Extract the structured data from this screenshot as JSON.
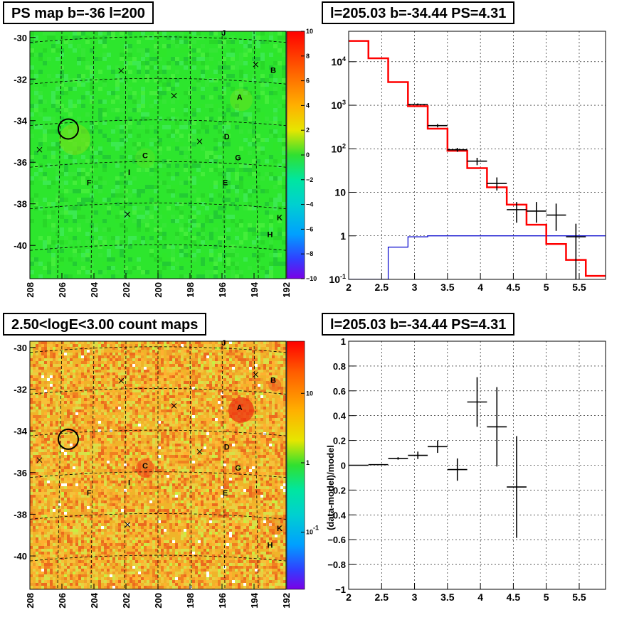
{
  "panels": {
    "map_top_title": "PS map b=-36 l=200",
    "spec_top_title": "l=205.03 b=-34.44 PS=4.31",
    "map_bottom_title": "2.50<logE<3.00 count maps",
    "spec_bottom_title": "l=205.03 b=-34.44 PS=4.31"
  },
  "colors": {
    "map_top_bg": "#2de62d",
    "map_bottom_bg": "#f0b429",
    "data": "#000000",
    "model": "#ff0000",
    "background_model": "#0000cc"
  },
  "chart_data": [
    {
      "type": "heatmap",
      "title": "PS map b=-36 l=200",
      "xlim": [
        208,
        192
      ],
      "ylim": [
        -41.6,
        -29.7
      ],
      "x_ticks": [
        "208",
        "206",
        "204",
        "202",
        "200",
        "198",
        "196",
        "194",
        "192"
      ],
      "y_ticks": [
        "-30",
        "-32",
        "-34",
        "-36",
        "-38",
        "-40"
      ],
      "colorbar_ticks": [
        "10",
        "8",
        "6",
        "4",
        "2",
        "0",
        "−2",
        "−4",
        "−6",
        "−8",
        "−10"
      ],
      "colorbar_range": [
        -10,
        10
      ],
      "labels": [
        {
          "text": "J",
          "l": 195.9,
          "b": -29.9
        },
        {
          "text": "B",
          "l": 192.8,
          "b": -31.7
        },
        {
          "text": "A",
          "l": 194.9,
          "b": -33.0
        },
        {
          "text": "D",
          "l": 195.7,
          "b": -34.9
        },
        {
          "text": "G",
          "l": 195.0,
          "b": -35.9
        },
        {
          "text": "C",
          "l": 200.8,
          "b": -35.8
        },
        {
          "text": "I",
          "l": 201.8,
          "b": -36.6
        },
        {
          "text": "F",
          "l": 204.3,
          "b": -37.1
        },
        {
          "text": "E",
          "l": 195.8,
          "b": -37.1
        },
        {
          "text": "K",
          "l": 192.4,
          "b": -38.8
        },
        {
          "text": "H",
          "l": 193.0,
          "b": -39.6
        }
      ],
      "crosses": [
        [
          207.4,
          -35.4
        ],
        [
          202.3,
          -31.6
        ],
        [
          193.9,
          -31.3
        ],
        [
          199.0,
          -32.8
        ],
        [
          197.4,
          -35.0
        ],
        [
          201.9,
          -38.5
        ]
      ],
      "circle": {
        "l": 205.6,
        "b": -34.4
      }
    },
    {
      "type": "line",
      "title": "l=205.03 b=-34.44 PS=4.31",
      "x_scale": "linear",
      "y_scale": "log",
      "xlim": [
        2.0,
        5.9
      ],
      "ylim": [
        0.1,
        50000
      ],
      "x_ticks": [
        "2",
        "2.5",
        "3",
        "3.5",
        "4",
        "4.5",
        "5",
        "5.5"
      ],
      "y_ticks": [
        "10<sup>-1</sup>",
        "1",
        "10",
        "10<sup>2</sup>",
        "10<sup>3</sup>",
        "10<sup>4</sup>"
      ],
      "bin_edges": [
        2.0,
        2.3,
        2.6,
        2.9,
        3.2,
        3.5,
        3.8,
        4.1,
        4.4,
        4.7,
        5.0,
        5.3,
        5.6,
        5.9
      ],
      "series": [
        {
          "name": "model",
          "values": [
            30000,
            12000,
            3400,
            950,
            290,
            90,
            36,
            13,
            5.2,
            1.8,
            0.65,
            0.28,
            0.12
          ]
        },
        {
          "name": "background",
          "values": [
            0.1,
            0.1,
            0.55,
            0.95,
            1.0,
            1.0,
            1.0,
            1.0,
            1.0,
            1.0,
            1.0,
            1.0,
            1.0
          ]
        }
      ],
      "data_points": [
        {
          "x": 3.05,
          "y": 1050,
          "lo": 1000,
          "hi": 1100
        },
        {
          "x": 3.35,
          "y": 340,
          "lo": 310,
          "hi": 370
        },
        {
          "x": 3.65,
          "y": 95,
          "lo": 85,
          "hi": 105
        },
        {
          "x": 3.95,
          "y": 52,
          "lo": 42,
          "hi": 62
        },
        {
          "x": 4.25,
          "y": 16,
          "lo": 11,
          "hi": 22
        },
        {
          "x": 4.55,
          "y": 4.0,
          "lo": 2.0,
          "hi": 6.0
        },
        {
          "x": 4.85,
          "y": 3.7,
          "lo": 2.0,
          "hi": 6.0
        },
        {
          "x": 5.15,
          "y": 3.0,
          "lo": 1.3,
          "hi": 5.5
        },
        {
          "x": 5.45,
          "y": 0.95,
          "lo": 0.1,
          "hi": 1.9
        }
      ]
    },
    {
      "type": "heatmap",
      "title": "2.50<logE<3.00 count maps",
      "xlim": [
        208,
        192
      ],
      "ylim": [
        -41.6,
        -29.7
      ],
      "x_ticks": [
        "208",
        "206",
        "204",
        "202",
        "200",
        "198",
        "196",
        "194",
        "192"
      ],
      "y_ticks": [
        "-30",
        "-32",
        "-34",
        "-36",
        "-38",
        "-40"
      ],
      "colorbar_ticks": [
        "10",
        "1",
        "10<sup>-1</sup>"
      ],
      "colorbar_range_log10": [
        -1.3,
        1.25
      ],
      "labels": [
        {
          "text": "J",
          "l": 195.9,
          "b": -29.9
        },
        {
          "text": "B",
          "l": 192.8,
          "b": -31.7
        },
        {
          "text": "A",
          "l": 194.9,
          "b": -33.0
        },
        {
          "text": "D",
          "l": 195.7,
          "b": -34.9
        },
        {
          "text": "G",
          "l": 195.0,
          "b": -35.9
        },
        {
          "text": "C",
          "l": 200.8,
          "b": -35.8
        },
        {
          "text": "I",
          "l": 201.8,
          "b": -36.6
        },
        {
          "text": "F",
          "l": 204.3,
          "b": -37.1
        },
        {
          "text": "E",
          "l": 195.8,
          "b": -37.1
        },
        {
          "text": "K",
          "l": 192.4,
          "b": -38.8
        },
        {
          "text": "H",
          "l": 193.0,
          "b": -39.6
        }
      ],
      "crosses": [
        [
          207.4,
          -35.4
        ],
        [
          202.3,
          -31.6
        ],
        [
          193.9,
          -31.3
        ],
        [
          199.0,
          -32.8
        ],
        [
          197.4,
          -35.0
        ],
        [
          201.9,
          -38.5
        ]
      ],
      "circle": {
        "l": 205.6,
        "b": -34.4
      }
    },
    {
      "type": "scatter",
      "title": "l=205.03 b=-34.44 PS=4.31",
      "ylabel": "(data-model)/model",
      "xlim": [
        2.0,
        5.9
      ],
      "ylim": [
        -1.0,
        1.0
      ],
      "x_ticks": [
        "2",
        "2.5",
        "3",
        "3.5",
        "4",
        "4.5",
        "5",
        "5.5"
      ],
      "y_ticks": [
        "−1",
        "−0.8",
        "−0.6",
        "−0.4",
        "−0.2",
        "0",
        "0.2",
        "0.4",
        "0.6",
        "0.8",
        "1"
      ],
      "points": [
        {
          "x": 2.15,
          "y": 0.0,
          "err": 0.0
        },
        {
          "x": 2.45,
          "y": 0.005,
          "err": 0.0
        },
        {
          "x": 2.75,
          "y": 0.055,
          "err": 0.01
        },
        {
          "x": 3.05,
          "y": 0.08,
          "err": 0.03
        },
        {
          "x": 3.35,
          "y": 0.15,
          "err": 0.05
        },
        {
          "x": 3.65,
          "y": -0.035,
          "err": 0.09
        },
        {
          "x": 3.95,
          "y": 0.51,
          "err": 0.2
        },
        {
          "x": 4.25,
          "y": 0.31,
          "err": 0.32
        },
        {
          "x": 4.55,
          "y": -0.175,
          "err": 0.41
        }
      ]
    }
  ]
}
